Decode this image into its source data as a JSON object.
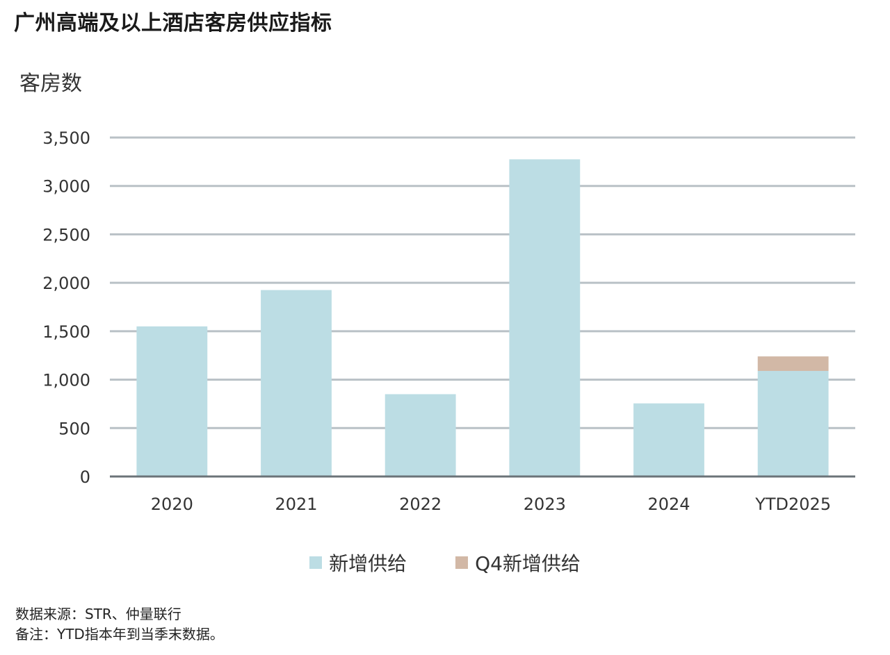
{
  "page_title": "广州高端及以上酒店客房供应指标",
  "chart_data": {
    "type": "bar",
    "stacked": true,
    "title": "广州高端及以上酒店客房供应指标",
    "ylabel": "客房数",
    "xlabel": "",
    "categories": [
      "2020",
      "2021",
      "2022",
      "2023",
      "2024",
      "YTD2025"
    ],
    "series": [
      {
        "name": "新增供给",
        "color": "#bcdde4",
        "values": [
          1550,
          1925,
          850,
          3275,
          755,
          1090
        ]
      },
      {
        "name": "Q4新增供给",
        "color": "#d2b8a6",
        "values": [
          0,
          0,
          0,
          0,
          0,
          150
        ]
      }
    ],
    "ylim": [
      0,
      3500
    ],
    "yticks": [
      0,
      500,
      1000,
      1500,
      2000,
      2500,
      3000,
      3500
    ],
    "ytick_labels": [
      "0",
      "500",
      "1,000",
      "1,500",
      "2,000",
      "2,500",
      "3,000",
      "3,500"
    ],
    "grid": true,
    "legend_position": "bottom"
  },
  "footnotes": {
    "source": "数据来源：STR、仲量联行",
    "note": "备注：YTD指本年到当季末数据。"
  }
}
